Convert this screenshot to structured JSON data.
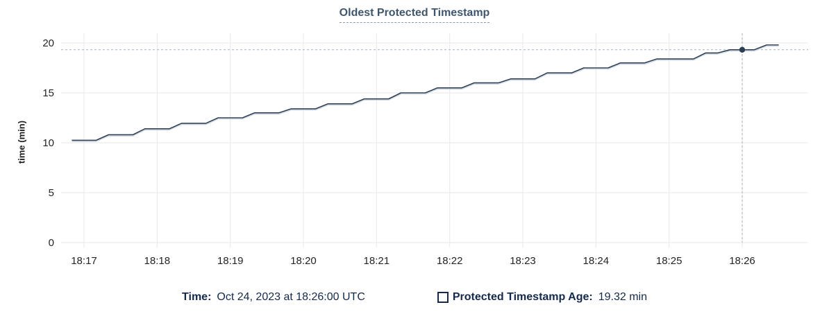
{
  "title": "Oldest Protected Timestamp",
  "colors": {
    "line": "#2c3e54",
    "line_halo": "#ccd6e0",
    "grid": "#ececec",
    "crosshair": "#9fb1c0",
    "tick_text": "#242424",
    "title_text": "#3f566f",
    "legend_text": "#14294e"
  },
  "legend": {
    "time_label": "Time:",
    "time_value": "Oct 24, 2023 at 18:26:00 UTC",
    "checkbox_icon": "checkbox-unchecked",
    "series_label": "Protected Timestamp Age:",
    "series_value": "19.32 min"
  },
  "chart_data": {
    "type": "line",
    "title": "Oldest Protected Timestamp",
    "xlabel": "",
    "ylabel": "time (min)",
    "ylim": [
      0,
      20
    ],
    "y_ticks": [
      0,
      5,
      10,
      15,
      20
    ],
    "x_ticks": [
      "18:17",
      "18:18",
      "18:19",
      "18:20",
      "18:21",
      "18:22",
      "18:23",
      "18:24",
      "18:25",
      "18:26"
    ],
    "grid": true,
    "legend_position": "bottom",
    "highlight": {
      "time": "18:26:00",
      "value": 19.32
    },
    "series": [
      {
        "name": "Protected Timestamp Age",
        "unit": "min",
        "points": [
          [
            "18:16:50",
            10.25
          ],
          [
            "18:17:00",
            10.25
          ],
          [
            "18:17:10",
            10.25
          ],
          [
            "18:17:20",
            10.8
          ],
          [
            "18:17:30",
            10.8
          ],
          [
            "18:17:40",
            10.8
          ],
          [
            "18:17:50",
            11.4
          ],
          [
            "18:18:00",
            11.4
          ],
          [
            "18:18:10",
            11.4
          ],
          [
            "18:18:20",
            11.95
          ],
          [
            "18:18:30",
            11.95
          ],
          [
            "18:18:40",
            11.95
          ],
          [
            "18:18:50",
            12.5
          ],
          [
            "18:19:00",
            12.5
          ],
          [
            "18:19:10",
            12.5
          ],
          [
            "18:19:20",
            13.0
          ],
          [
            "18:19:30",
            13.0
          ],
          [
            "18:19:40",
            13.0
          ],
          [
            "18:19:50",
            13.4
          ],
          [
            "18:20:00",
            13.4
          ],
          [
            "18:20:10",
            13.4
          ],
          [
            "18:20:20",
            13.9
          ],
          [
            "18:20:30",
            13.9
          ],
          [
            "18:20:40",
            13.9
          ],
          [
            "18:20:50",
            14.4
          ],
          [
            "18:21:00",
            14.4
          ],
          [
            "18:21:10",
            14.4
          ],
          [
            "18:21:20",
            15.0
          ],
          [
            "18:21:30",
            15.0
          ],
          [
            "18:21:40",
            15.0
          ],
          [
            "18:21:50",
            15.5
          ],
          [
            "18:22:00",
            15.5
          ],
          [
            "18:22:10",
            15.5
          ],
          [
            "18:22:20",
            16.0
          ],
          [
            "18:22:30",
            16.0
          ],
          [
            "18:22:40",
            16.0
          ],
          [
            "18:22:50",
            16.4
          ],
          [
            "18:23:00",
            16.4
          ],
          [
            "18:23:10",
            16.4
          ],
          [
            "18:23:20",
            17.0
          ],
          [
            "18:23:30",
            17.0
          ],
          [
            "18:23:40",
            17.0
          ],
          [
            "18:23:50",
            17.5
          ],
          [
            "18:24:00",
            17.5
          ],
          [
            "18:24:10",
            17.5
          ],
          [
            "18:24:20",
            18.0
          ],
          [
            "18:24:30",
            18.0
          ],
          [
            "18:24:40",
            18.0
          ],
          [
            "18:24:50",
            18.4
          ],
          [
            "18:25:00",
            18.4
          ],
          [
            "18:25:10",
            18.4
          ],
          [
            "18:25:20",
            18.4
          ],
          [
            "18:25:30",
            19.0
          ],
          [
            "18:25:40",
            19.0
          ],
          [
            "18:25:50",
            19.32
          ],
          [
            "18:26:00",
            19.32
          ],
          [
            "18:26:10",
            19.32
          ],
          [
            "18:26:20",
            19.8
          ],
          [
            "18:26:30",
            19.8
          ]
        ]
      }
    ]
  }
}
